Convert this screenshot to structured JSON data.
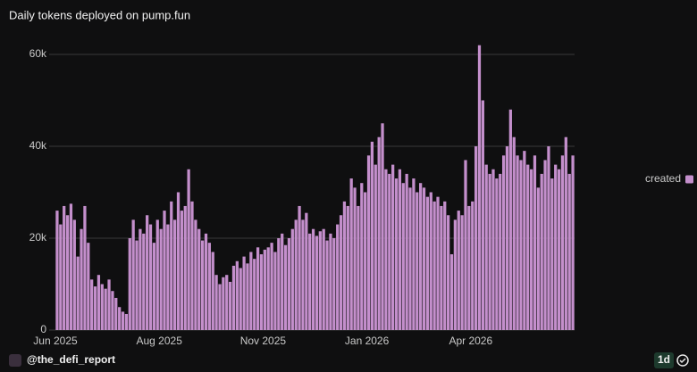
{
  "chart_data": {
    "type": "bar",
    "title": "Daily tokens deployed on pump.fun",
    "categories": [
      "Jun 2025",
      null,
      null,
      null,
      null,
      null,
      null,
      null,
      null,
      null,
      null,
      null,
      null,
      null,
      null,
      null,
      null,
      null,
      null,
      null,
      null,
      null,
      null,
      null,
      null,
      null,
      null,
      null,
      null,
      null,
      "Aug 2025",
      null,
      null,
      null,
      null,
      null,
      null,
      null,
      null,
      null,
      null,
      null,
      null,
      null,
      null,
      null,
      null,
      null,
      null,
      null,
      null,
      null,
      null,
      null,
      null,
      null,
      null,
      null,
      null,
      null,
      "Nov 2025",
      null,
      null,
      null,
      null,
      null,
      null,
      null,
      null,
      null,
      null,
      null,
      null,
      null,
      null,
      null,
      null,
      null,
      null,
      null,
      null,
      null,
      null,
      null,
      null,
      null,
      null,
      null,
      null,
      null,
      "Jan 2026",
      null,
      null,
      null,
      null,
      null,
      null,
      null,
      null,
      null,
      null,
      null,
      null,
      null,
      null,
      null,
      null,
      null,
      null,
      null,
      null,
      null,
      null,
      null,
      null,
      null,
      null,
      null,
      null,
      null,
      "Apr 2026",
      null,
      null,
      null,
      null,
      null,
      null,
      null,
      null,
      null,
      null,
      null,
      null,
      null,
      null,
      null,
      null,
      null,
      null,
      null,
      null,
      null,
      null,
      null,
      null,
      null,
      null,
      null,
      null,
      null
    ],
    "series": [
      {
        "name": "created",
        "color": "#c48fcc",
        "values": [
          26000,
          23000,
          27000,
          25000,
          27500,
          24000,
          16000,
          22000,
          27000,
          19000,
          11000,
          9500,
          12000,
          10000,
          9000,
          11000,
          8500,
          7000,
          5000,
          4000,
          3500,
          20000,
          24000,
          19500,
          22000,
          21000,
          25000,
          23000,
          19000,
          24000,
          22000,
          26000,
          23000,
          28000,
          24000,
          30000,
          26000,
          27000,
          35000,
          28000,
          24000,
          22000,
          19500,
          21000,
          19000,
          17000,
          12000,
          10000,
          11500,
          12000,
          10500,
          14000,
          15000,
          13500,
          16000,
          14500,
          17000,
          15500,
          18000,
          16500,
          17500,
          18000,
          19000,
          17000,
          20000,
          21000,
          18500,
          20000,
          22000,
          24000,
          27000,
          24000,
          25500,
          21000,
          22000,
          20500,
          21500,
          22000,
          19500,
          21000,
          20000,
          23000,
          25000,
          28000,
          27000,
          33000,
          31000,
          27000,
          32000,
          30000,
          38000,
          41000,
          36000,
          42000,
          45000,
          35000,
          34000,
          36000,
          33000,
          35000,
          32000,
          34000,
          31000,
          33000,
          30000,
          32000,
          31000,
          29000,
          30000,
          28000,
          29000,
          27000,
          28000,
          25000,
          16500,
          24000,
          26000,
          25000,
          37000,
          27000,
          28000,
          40000,
          62000,
          50000,
          36000,
          34000,
          35000,
          33000,
          34000,
          38000,
          40000,
          48000,
          42000,
          38000,
          37000,
          39000,
          36000,
          35000,
          38000,
          31000,
          34000,
          37000,
          40000,
          33000,
          36000,
          35000,
          38000,
          42000,
          34000,
          38000
        ]
      }
    ],
    "ylim": [
      0,
      62000
    ],
    "yticks": [
      0,
      {
        "value": 20000,
        "label": "20k"
      },
      {
        "value": 40000,
        "label": "40k"
      },
      {
        "value": 60000,
        "label": "60k"
      }
    ],
    "grid": true,
    "legend": "right"
  },
  "footer": {
    "handle": "@the_defi_report",
    "interval": "1d"
  }
}
